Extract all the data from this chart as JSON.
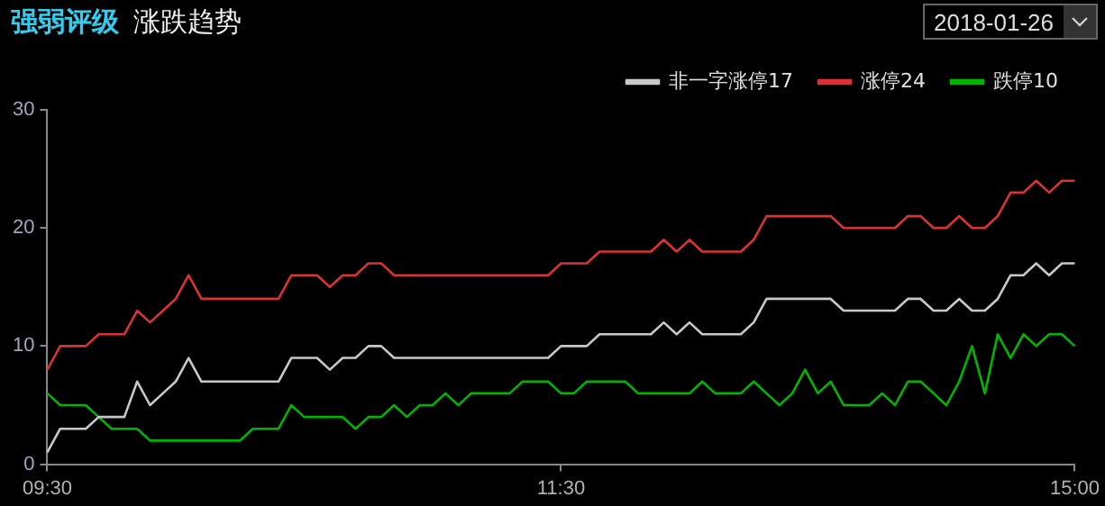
{
  "chart_data": {
    "type": "line",
    "title": "强弱评级",
    "subtitle": "涨跌趋势",
    "annotations": [
      "2018-01-26"
    ],
    "categories": [
      "09:30",
      null,
      null,
      null,
      null,
      null,
      null,
      null,
      null,
      null,
      null,
      null,
      null,
      null,
      null,
      null,
      null,
      null,
      null,
      null,
      null,
      null,
      null,
      null,
      null,
      null,
      null,
      null,
      null,
      null,
      null,
      null,
      null,
      null,
      null,
      null,
      null,
      null,
      null,
      null,
      "11:30",
      null,
      null,
      null,
      null,
      null,
      null,
      null,
      null,
      null,
      null,
      null,
      null,
      null,
      null,
      null,
      null,
      null,
      null,
      null,
      null,
      null,
      null,
      null,
      null,
      null,
      null,
      null,
      null,
      null,
      null,
      null,
      null,
      null,
      null,
      null,
      null,
      null,
      null,
      null,
      "15:00"
    ],
    "series": [
      {
        "name": "非一字涨停17",
        "color": "#c8c8c8",
        "values": [
          1,
          3,
          3,
          3,
          4,
          4,
          4,
          7,
          5,
          6,
          7,
          9,
          7,
          7,
          7,
          7,
          7,
          7,
          7,
          9,
          9,
          9,
          8,
          9,
          9,
          10,
          10,
          9,
          9,
          9,
          9,
          9,
          9,
          9,
          9,
          9,
          9,
          9,
          9,
          9,
          10,
          10,
          10,
          11,
          11,
          11,
          11,
          11,
          12,
          11,
          12,
          11,
          11,
          11,
          11,
          12,
          14,
          14,
          14,
          14,
          14,
          14,
          13,
          13,
          13,
          13,
          13,
          14,
          14,
          13,
          13,
          14,
          13,
          13,
          14,
          16,
          16,
          17,
          16,
          17,
          17
        ]
      },
      {
        "name": "涨停24",
        "color": "#d93333",
        "values": [
          8,
          10,
          10,
          10,
          11,
          11,
          11,
          13,
          12,
          13,
          14,
          16,
          14,
          14,
          14,
          14,
          14,
          14,
          14,
          16,
          16,
          16,
          15,
          16,
          16,
          17,
          17,
          16,
          16,
          16,
          16,
          16,
          16,
          16,
          16,
          16,
          16,
          16,
          16,
          16,
          17,
          17,
          17,
          18,
          18,
          18,
          18,
          18,
          19,
          18,
          19,
          18,
          18,
          18,
          18,
          19,
          21,
          21,
          21,
          21,
          21,
          21,
          20,
          20,
          20,
          20,
          20,
          21,
          21,
          20,
          20,
          21,
          20,
          20,
          21,
          23,
          23,
          24,
          23,
          24,
          24
        ]
      },
      {
        "name": "跌停10",
        "color": "#00b400",
        "values": [
          6,
          5,
          5,
          5,
          4,
          3,
          3,
          3,
          2,
          2,
          2,
          2,
          2,
          2,
          2,
          2,
          3,
          3,
          3,
          5,
          4,
          4,
          4,
          4,
          3,
          4,
          4,
          5,
          4,
          5,
          5,
          6,
          5,
          6,
          6,
          6,
          6,
          7,
          7,
          7,
          6,
          6,
          7,
          7,
          7,
          7,
          6,
          6,
          6,
          6,
          6,
          7,
          6,
          6,
          6,
          7,
          6,
          5,
          6,
          8,
          6,
          7,
          5,
          5,
          5,
          6,
          5,
          7,
          7,
          6,
          5,
          7,
          10,
          6,
          11,
          9,
          11,
          10,
          11,
          11,
          10
        ]
      }
    ],
    "ylim": [
      0,
      30
    ],
    "yticks": [
      0,
      10,
      20,
      30
    ],
    "legend": "top right",
    "tick_labels": "xy"
  }
}
